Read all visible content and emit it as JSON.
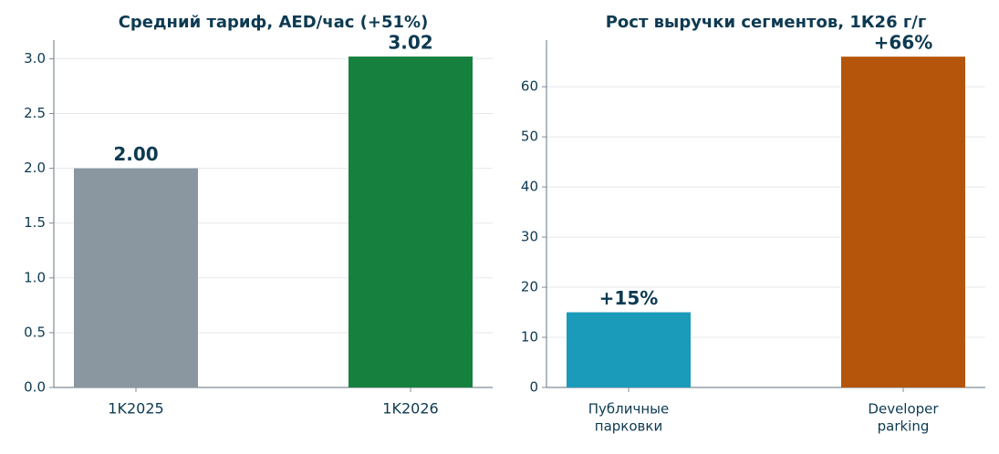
{
  "chart_data": [
    {
      "type": "bar",
      "title": "Средний тариф, AED/час (+51%)",
      "categories": [
        [
          "1K2025"
        ],
        [
          "1K2026"
        ]
      ],
      "values": [
        2.0,
        3.02
      ],
      "value_labels": [
        "2.00",
        "3.02"
      ],
      "colors": [
        "#8a96a0",
        "#16803f"
      ],
      "ylim": [
        0,
        3.17
      ],
      "yticks": [
        {
          "value": 0,
          "label": "0.0"
        },
        0.5,
        {
          "value": 1,
          "label": "1.0"
        },
        1.5,
        {
          "value": 2,
          "label": "2.0"
        },
        2.5,
        {
          "value": 3,
          "label": "3.0"
        }
      ],
      "grid": true
    },
    {
      "type": "bar",
      "title": "Рост выручки сегментов, 1К26 г/г",
      "categories": [
        [
          "Публичные",
          "парковки"
        ],
        [
          "Developer",
          "parking"
        ]
      ],
      "values": [
        15,
        66
      ],
      "value_labels": [
        "+15%",
        "+66%"
      ],
      "colors": [
        "#1a9bb9",
        "#b5550b"
      ],
      "ylim": [
        0,
        69.3
      ],
      "yticks": [
        0,
        10,
        20,
        30,
        40,
        50,
        60
      ],
      "grid": true
    }
  ]
}
